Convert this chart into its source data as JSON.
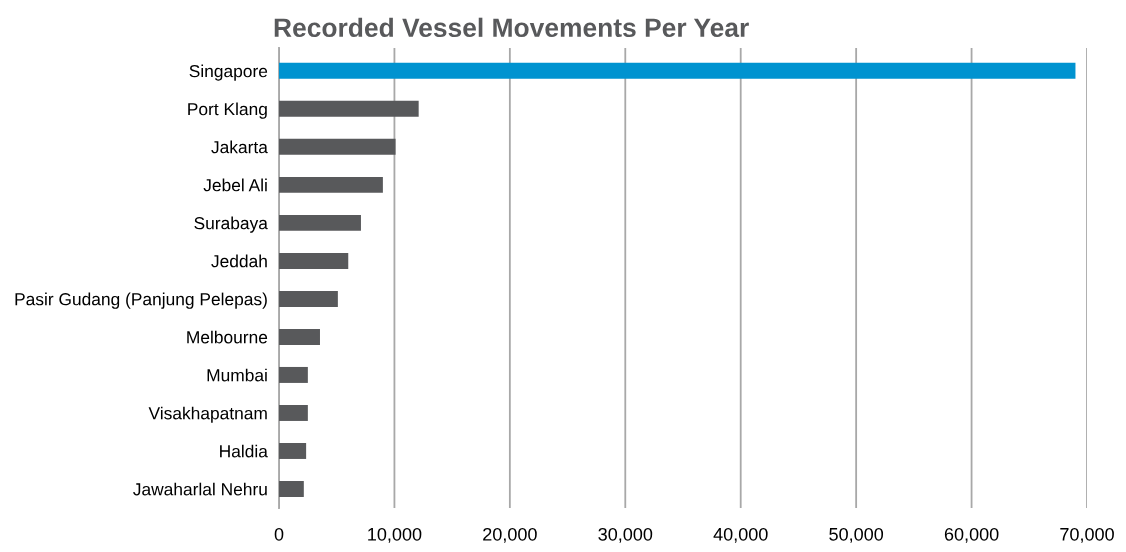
{
  "chart_data": {
    "type": "bar",
    "orientation": "horizontal",
    "title": "Recorded Vessel Movements Per Year",
    "categories": [
      "Singapore",
      "Port Klang",
      "Jakarta",
      "Jebel Ali",
      "Surabaya",
      "Jeddah",
      "Pasir Gudang (Panjung Pelepas)",
      "Melbourne",
      "Mumbai",
      "Visakhapatnam",
      "Haldia",
      "Jawaharlal Nehru"
    ],
    "values": [
      69000,
      12100,
      10100,
      9000,
      7100,
      6000,
      5100,
      3550,
      2500,
      2500,
      2350,
      2150
    ],
    "colors": [
      "#0093d0",
      "#58595b",
      "#58595b",
      "#58595b",
      "#58595b",
      "#58595b",
      "#58595b",
      "#58595b",
      "#58595b",
      "#58595b",
      "#58595b",
      "#58595b"
    ],
    "xlim": [
      0,
      70000
    ],
    "xticks": [
      0,
      {
        "value": 10000,
        "label": "10,000"
      },
      {
        "value": 20000,
        "label": "20,000"
      },
      {
        "value": 30000,
        "label": "30,000"
      },
      {
        "value": 40000,
        "label": "40,000"
      },
      {
        "value": 50000,
        "label": "50,000"
      },
      {
        "value": 60000,
        "label": "60,000"
      },
      {
        "value": 70000,
        "label": "70,000"
      }
    ],
    "grid": "x",
    "legend": false
  }
}
